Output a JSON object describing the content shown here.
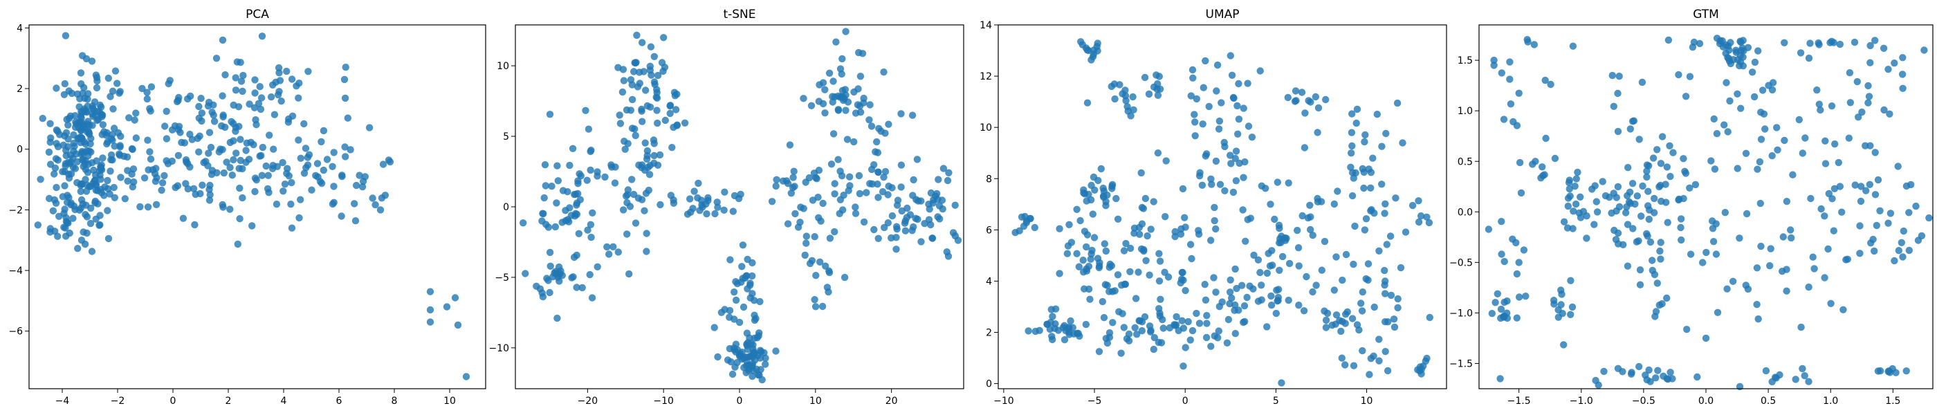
{
  "style": {
    "point_color": "#1f77b4",
    "point_opacity": 0.8,
    "grid": false
  },
  "chart_data": [
    {
      "type": "scatter",
      "title": "PCA",
      "xlabel": "",
      "ylabel": "",
      "xlim": [
        -5.2,
        11.3
      ],
      "ylim": [
        -7.9,
        4.1
      ],
      "xticks": [
        -4,
        -2,
        0,
        2,
        4,
        6,
        8,
        10
      ],
      "yticks": [
        -6,
        -4,
        -2,
        0,
        2,
        4
      ],
      "clusters": [
        {
          "center": [
            -3.2,
            0.3
          ],
          "spread": [
            0.6,
            1.2
          ],
          "n": 190
        },
        {
          "center": [
            -3.5,
            -1.9
          ],
          "spread": [
            0.7,
            0.6
          ],
          "n": 45
        },
        {
          "center": [
            -1.0,
            0.2
          ],
          "spread": [
            1.5,
            1.3
          ],
          "n": 80
        },
        {
          "center": [
            1.8,
            -0.2
          ],
          "spread": [
            1.6,
            1.2
          ],
          "n": 110
        },
        {
          "center": [
            3.0,
            1.8
          ],
          "spread": [
            1.2,
            0.8
          ],
          "n": 40
        },
        {
          "center": [
            4.8,
            -0.5
          ],
          "spread": [
            1.2,
            0.9
          ],
          "n": 40
        },
        {
          "center": [
            6.8,
            -1.1
          ],
          "spread": [
            0.6,
            0.5
          ],
          "n": 15
        },
        {
          "center": [
            -4.3,
            -2.7
          ],
          "spread": [
            0.2,
            0.15
          ],
          "n": 4
        }
      ],
      "points": [
        [
          9.3,
          -4.7
        ],
        [
          9.3,
          -5.3
        ],
        [
          9.3,
          -5.7
        ],
        [
          9.9,
          -5.2
        ],
        [
          10.2,
          -4.9
        ],
        [
          10.3,
          -5.8
        ],
        [
          10.6,
          -7.5
        ],
        [
          6.2,
          2.3
        ],
        [
          7.6,
          -0.5
        ],
        [
          7.5,
          -2.0
        ],
        [
          4.3,
          -2.6
        ],
        [
          -3.3,
          -3.0
        ],
        [
          1.8,
          3.6
        ]
      ]
    },
    {
      "type": "scatter",
      "title": "t-SNE",
      "xlabel": "",
      "ylabel": "",
      "xlim": [
        -29.5,
        29.5
      ],
      "ylim": [
        -12.9,
        12.9
      ],
      "xticks": [
        -20,
        -10,
        0,
        10,
        20
      ],
      "yticks": [
        -10,
        -5,
        0,
        5,
        10
      ],
      "clusters": [
        {
          "center": [
            -12,
            9
          ],
          "spread": [
            2.0,
            1.6
          ],
          "n": 45
        },
        {
          "center": [
            -13,
            3
          ],
          "spread": [
            2.2,
            2.8
          ],
          "n": 55
        },
        {
          "center": [
            -21,
            0
          ],
          "spread": [
            3.0,
            2.8
          ],
          "n": 70
        },
        {
          "center": [
            -24.5,
            -5
          ],
          "spread": [
            1.2,
            0.8
          ],
          "n": 20
        },
        {
          "center": [
            1.5,
            -10.5
          ],
          "spread": [
            1.2,
            1.0
          ],
          "n": 65
        },
        {
          "center": [
            0.5,
            -6.5
          ],
          "spread": [
            2.0,
            2.0
          ],
          "n": 35
        },
        {
          "center": [
            -4,
            0.2
          ],
          "spread": [
            3.5,
            0.6
          ],
          "n": 25
        },
        {
          "center": [
            11,
            1
          ],
          "spread": [
            4.0,
            1.8
          ],
          "n": 60
        },
        {
          "center": [
            14,
            8
          ],
          "spread": [
            2.0,
            1.5
          ],
          "n": 40
        },
        {
          "center": [
            22.5,
            -0.5
          ],
          "spread": [
            2.8,
            1.5
          ],
          "n": 55
        },
        {
          "center": [
            18,
            4
          ],
          "spread": [
            2.0,
            2.5
          ],
          "n": 30
        },
        {
          "center": [
            11,
            -4.5
          ],
          "spread": [
            1.5,
            1.0
          ],
          "n": 12
        }
      ],
      "points": [
        [
          -10,
          12
        ],
        [
          -24,
          -7.9
        ],
        [
          -26,
          -1
        ],
        [
          27.5,
          -3.5
        ],
        [
          27.3,
          -3.2
        ],
        [
          13.5,
          10.5
        ]
      ]
    },
    {
      "type": "scatter",
      "title": "UMAP",
      "xlabel": "",
      "ylabel": "",
      "xlim": [
        -10.3,
        14.4
      ],
      "ylim": [
        -0.2,
        14.0
      ],
      "xticks": [
        -10,
        -5,
        0,
        5,
        10
      ],
      "yticks": [
        0,
        2,
        4,
        6,
        8,
        10,
        12,
        14
      ],
      "clusters": [
        {
          "center": [
            -5.2,
            13.0
          ],
          "spread": [
            0.3,
            0.25
          ],
          "n": 12
        },
        {
          "center": [
            -3.2,
            11.1
          ],
          "spread": [
            0.7,
            0.5
          ],
          "n": 18
        },
        {
          "center": [
            -1.5,
            11.7
          ],
          "spread": [
            0.3,
            0.2
          ],
          "n": 5
        },
        {
          "center": [
            -8.7,
            6.2
          ],
          "spread": [
            0.4,
            0.25
          ],
          "n": 10
        },
        {
          "center": [
            -4.8,
            7.6
          ],
          "spread": [
            0.6,
            0.5
          ],
          "n": 20
        },
        {
          "center": [
            -6.8,
            2.2
          ],
          "spread": [
            0.7,
            0.5
          ],
          "n": 30
        },
        {
          "center": [
            -5.3,
            4.8
          ],
          "spread": [
            0.9,
            0.9
          ],
          "n": 35
        },
        {
          "center": [
            -2.2,
            5.3
          ],
          "spread": [
            1.6,
            1.3
          ],
          "n": 60
        },
        {
          "center": [
            -2.8,
            2.0
          ],
          "spread": [
            1.2,
            0.6
          ],
          "n": 30
        },
        {
          "center": [
            0.2,
            2.2
          ],
          "spread": [
            1.3,
            0.5
          ],
          "n": 20
        },
        {
          "center": [
            2.2,
            3.0
          ],
          "spread": [
            1.2,
            0.7
          ],
          "n": 20
        },
        {
          "center": [
            2.0,
            9.6
          ],
          "spread": [
            1.1,
            1.8
          ],
          "n": 60
        },
        {
          "center": [
            4.8,
            4.0
          ],
          "spread": [
            1.3,
            1.0
          ],
          "n": 40
        },
        {
          "center": [
            6.2,
            6.3
          ],
          "spread": [
            1.2,
            1.0
          ],
          "n": 30
        },
        {
          "center": [
            6.6,
            11.2
          ],
          "spread": [
            0.4,
            0.4
          ],
          "n": 12
        },
        {
          "center": [
            9.8,
            8.0
          ],
          "spread": [
            0.8,
            1.8
          ],
          "n": 35
        },
        {
          "center": [
            10.8,
            3.2
          ],
          "spread": [
            1.2,
            1.8
          ],
          "n": 45
        },
        {
          "center": [
            8.5,
            2.5
          ],
          "spread": [
            0.5,
            0.3
          ],
          "n": 10
        },
        {
          "center": [
            12.9,
            0.6
          ],
          "spread": [
            0.3,
            0.2
          ],
          "n": 8
        },
        {
          "center": [
            13.0,
            6.7
          ],
          "spread": [
            0.4,
            0.3
          ],
          "n": 6
        }
      ],
      "points": [
        [
          -9,
          6.5
        ],
        [
          -5,
          5.7
        ],
        [
          2.5,
          12.8
        ],
        [
          -1.5,
          9
        ]
      ]
    },
    {
      "type": "scatter",
      "title": "GTM",
      "xlabel": "",
      "ylabel": "",
      "xlim": [
        -1.82,
        1.82
      ],
      "ylim": [
        -1.75,
        1.85
      ],
      "xticks": [
        -1.5,
        -1.0,
        -0.5,
        0.0,
        0.5,
        1.0,
        1.5
      ],
      "yticks": [
        -1.5,
        -1.0,
        -0.5,
        0.0,
        0.5,
        1.0,
        1.5
      ],
      "clusters": [
        {
          "center": [
            0.25,
            1.55
          ],
          "spread": [
            0.07,
            0.07
          ],
          "n": 25
        },
        {
          "center": [
            0.1,
            1.67
          ],
          "spread": [
            0.12,
            0.02
          ],
          "n": 10
        },
        {
          "center": [
            1.1,
            1.67
          ],
          "spread": [
            0.3,
            0.02
          ],
          "n": 12
        },
        {
          "center": [
            -0.9,
            0.05
          ],
          "spread": [
            0.2,
            0.15
          ],
          "n": 40
        },
        {
          "center": [
            -0.35,
            0.25
          ],
          "spread": [
            0.15,
            0.25
          ],
          "n": 30
        },
        {
          "center": [
            -1.6,
            1.1
          ],
          "spread": [
            0.06,
            0.2
          ],
          "n": 8
        },
        {
          "center": [
            -1.6,
            -0.95
          ],
          "spread": [
            0.08,
            0.08
          ],
          "n": 15
        },
        {
          "center": [
            -1.15,
            -0.95
          ],
          "spread": [
            0.1,
            0.15
          ],
          "n": 12
        },
        {
          "center": [
            -0.6,
            -1.62
          ],
          "spread": [
            0.25,
            0.05
          ],
          "n": 20
        },
        {
          "center": [
            0.55,
            -1.62
          ],
          "spread": [
            0.2,
            0.04
          ],
          "n": 10
        },
        {
          "center": [
            1.5,
            -1.58
          ],
          "spread": [
            0.08,
            0.02
          ],
          "n": 8
        },
        {
          "center": [
            -0.5,
            -0.3
          ],
          "spread": [
            0.2,
            0.2
          ],
          "n": 20
        },
        {
          "center": [
            0.8,
            -0.2
          ],
          "spread": [
            0.5,
            0.4
          ],
          "n": 45
        },
        {
          "center": [
            1.3,
            0.7
          ],
          "spread": [
            0.3,
            0.5
          ],
          "n": 40
        },
        {
          "center": [
            -0.4,
            0.9
          ],
          "spread": [
            0.5,
            0.4
          ],
          "n": 35
        },
        {
          "center": [
            0.6,
            0.9
          ],
          "spread": [
            0.3,
            0.4
          ],
          "n": 25
        },
        {
          "center": [
            1.55,
            -0.3
          ],
          "spread": [
            0.1,
            0.3
          ],
          "n": 12
        },
        {
          "center": [
            -1.3,
            0.3
          ],
          "spread": [
            0.15,
            0.1
          ],
          "n": 10
        },
        {
          "center": [
            0.1,
            -0.8
          ],
          "spread": [
            0.6,
            0.3
          ],
          "n": 25
        },
        {
          "center": [
            -1.6,
            -0.35
          ],
          "spread": [
            0.07,
            0.15
          ],
          "n": 8
        },
        {
          "center": [
            -1.45,
            1.67
          ],
          "spread": [
            0.08,
            0.02
          ],
          "n": 3
        }
      ],
      "points": [
        [
          -1.7,
          1.45
        ],
        [
          -1.7,
          1.5
        ],
        [
          -0.75,
          1.35
        ],
        [
          -0.3,
          1.7
        ],
        [
          -1.65,
          -1.65
        ],
        [
          -1.5,
          -0.5
        ],
        [
          0.0,
          -1.25
        ],
        [
          1.75,
          1.6
        ]
      ]
    }
  ]
}
